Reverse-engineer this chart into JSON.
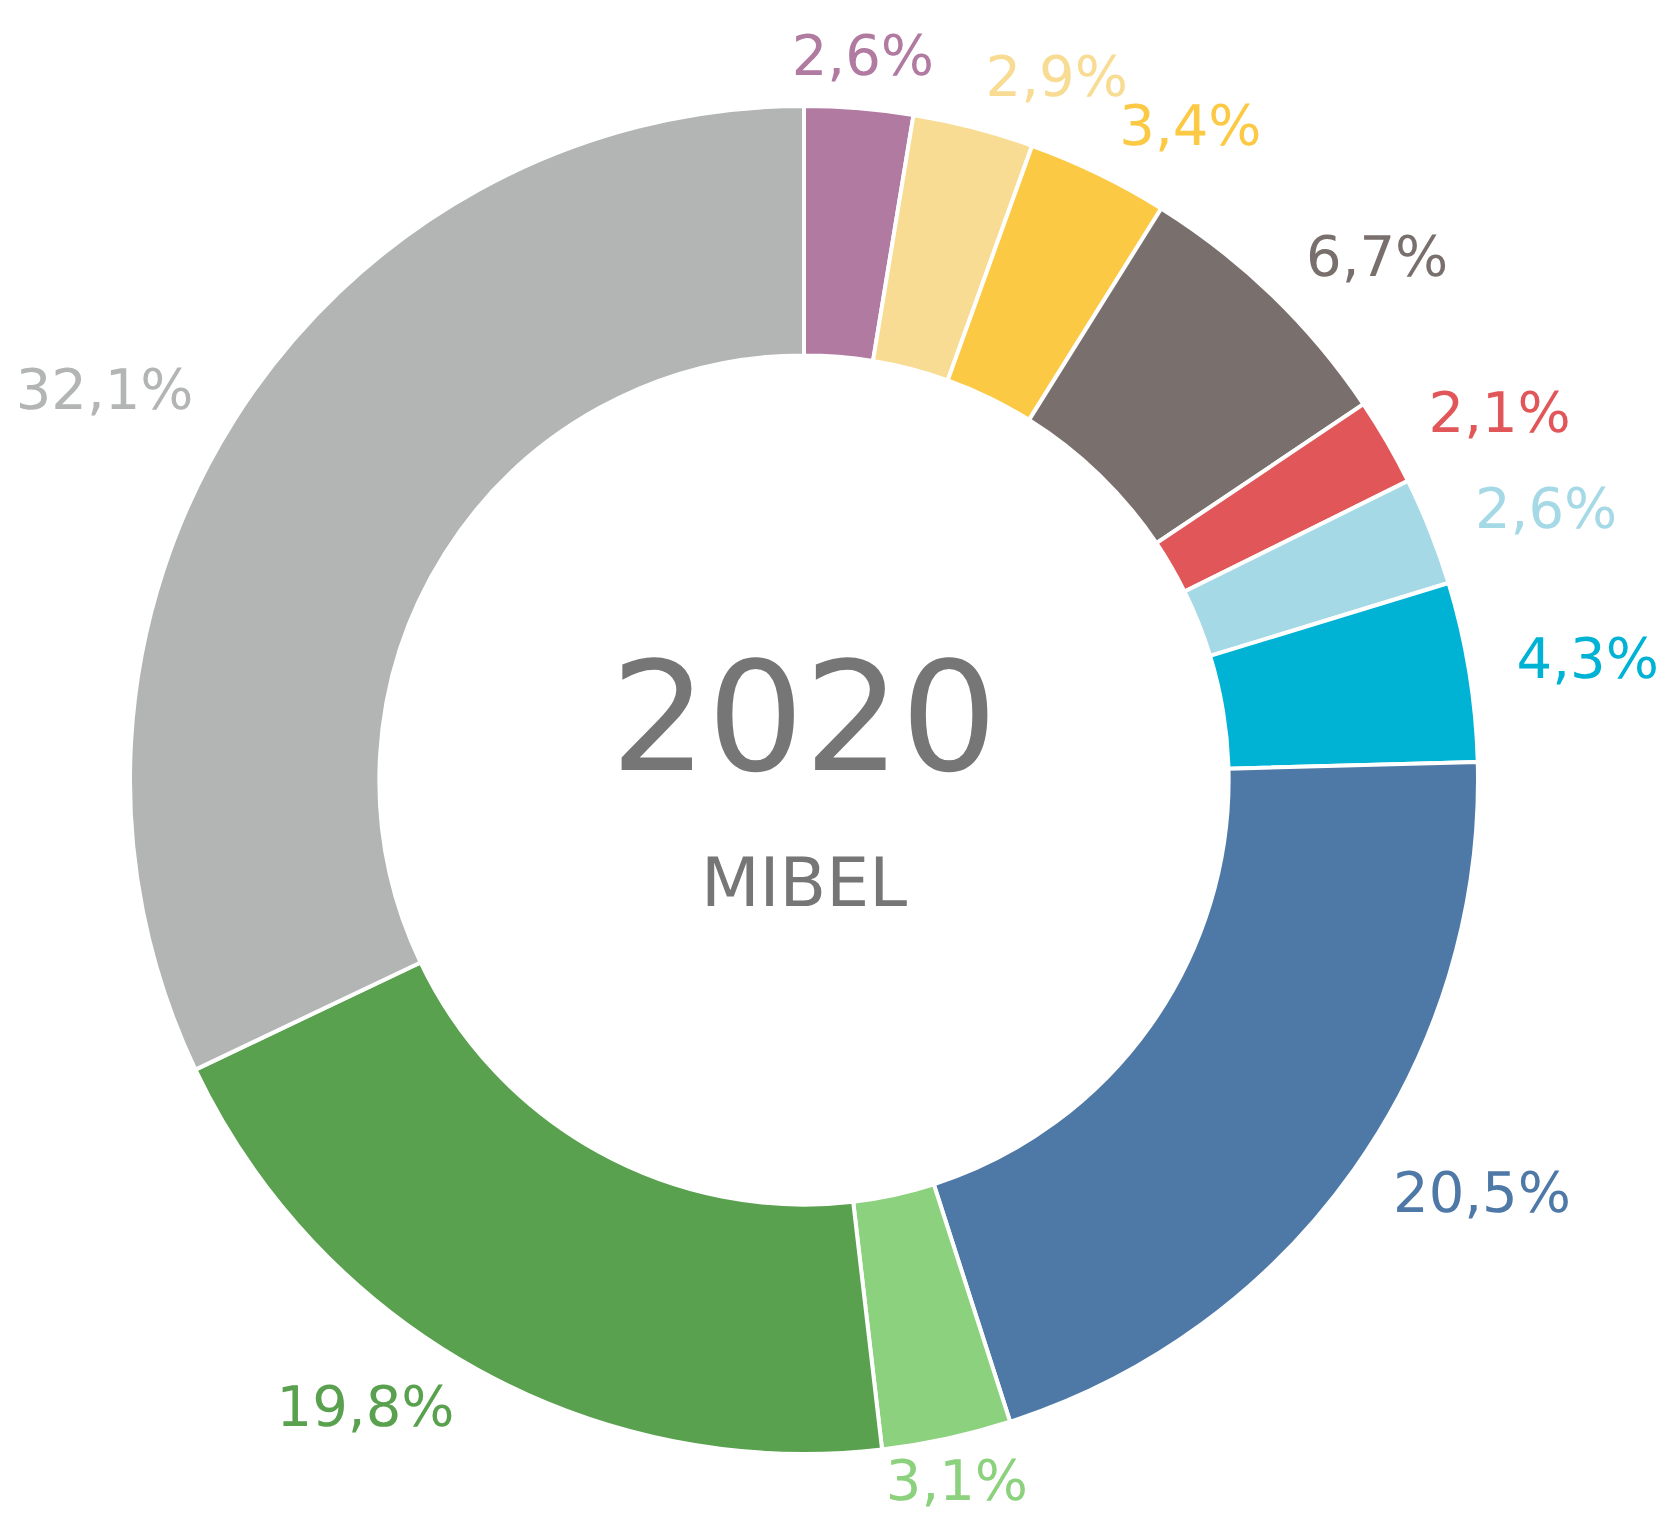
{
  "chart_data": {
    "type": "donut",
    "title": "2020",
    "subtitle": "MIBEL",
    "categories": [
      null,
      null,
      null,
      null,
      null,
      null,
      null,
      null,
      null,
      null,
      null
    ],
    "values": [
      2.6,
      2.9,
      3.4,
      6.7,
      2.1,
      2.6,
      4.3,
      20.5,
      3.1,
      19.8,
      32.1
    ],
    "colors": [
      "#b07aa1",
      "#f9dc93",
      "#fcc944",
      "#79706e",
      "#e15759",
      "#a6d9e6",
      "#00b2d3",
      "#4e79a7",
      "#8cd17d",
      "#59a14f",
      "#b3b5b5"
    ],
    "value_labels": [
      "2,6%",
      "2,9%",
      "3,4%",
      "6,7%",
      "2,1%",
      "2,6%",
      "4,3%",
      "20,5%",
      "3,1%",
      "19,8%",
      "32,1%"
    ],
    "legend": false
  }
}
